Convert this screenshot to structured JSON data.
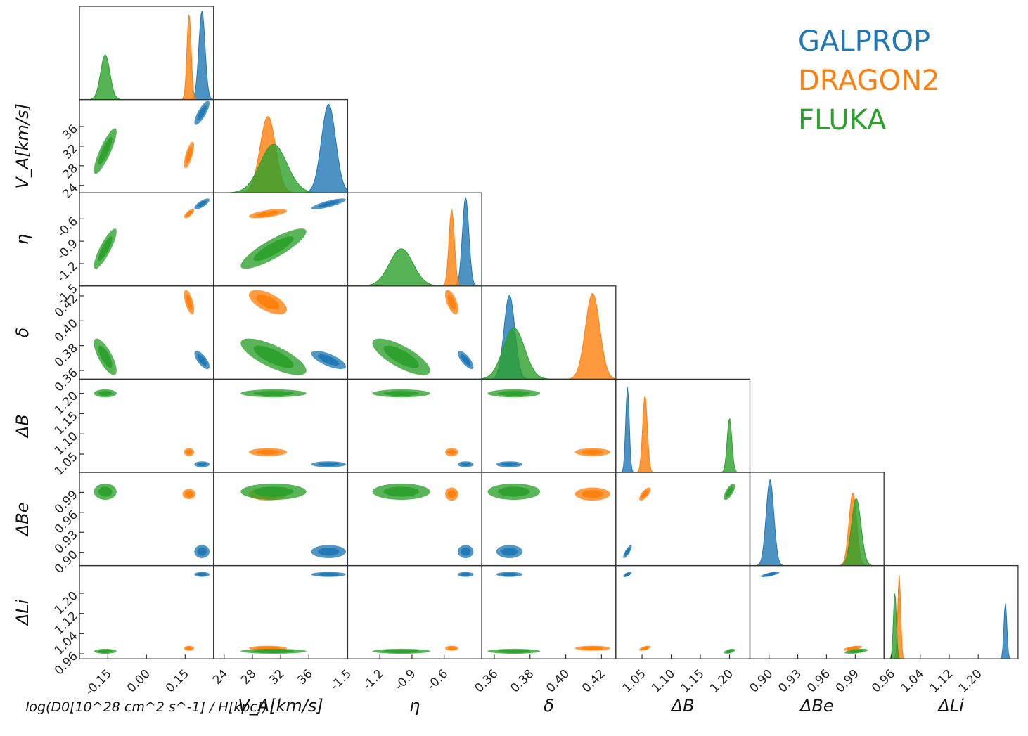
{
  "chart_data": {
    "type": "corner",
    "legend": {
      "placement": "top-right",
      "entries": [
        {
          "name": "GALPROP",
          "color": "#1f77b4"
        },
        {
          "name": "DRAGON2",
          "color": "#ff7f0e"
        },
        {
          "name": "FLUKA",
          "color": "#2ca02c"
        }
      ]
    },
    "parameters": [
      {
        "key": "logD",
        "label": "log(D0[10^28 cm^2 s^-1] / H[kpc])",
        "ticks": [
          "-0.15",
          "0.00",
          "0.15"
        ],
        "tick_values": [
          -0.15,
          0.0,
          0.15
        ],
        "range": [
          -0.26,
          0.26
        ]
      },
      {
        "key": "VA",
        "label": "V_A[km/s]",
        "ticks": [
          "24",
          "28",
          "32",
          "36"
        ],
        "tick_values": [
          24,
          28,
          32,
          36
        ],
        "range": [
          22.5,
          41.5
        ]
      },
      {
        "key": "eta",
        "label": "η",
        "ticks": [
          "-1.5",
          "-1.2",
          "-0.9",
          "-0.6"
        ],
        "tick_values": [
          -1.5,
          -1.2,
          -0.9,
          -0.6
        ],
        "range": [
          -1.5,
          -0.25
        ]
      },
      {
        "key": "delta",
        "label": "δ",
        "ticks": [
          "0.36",
          "0.38",
          "0.40",
          "0.42"
        ],
        "tick_values": [
          0.36,
          0.38,
          0.4,
          0.42
        ],
        "range": [
          0.353,
          0.428
        ]
      },
      {
        "key": "dB",
        "label": "ΔB",
        "ticks": [
          "1.05",
          "1.10",
          "1.15",
          "1.20"
        ],
        "tick_values": [
          1.05,
          1.1,
          1.15,
          1.2
        ],
        "range": [
          1.005,
          1.235
        ]
      },
      {
        "key": "dBe",
        "label": "ΔBe",
        "ticks": [
          "0.90",
          "0.93",
          "0.96",
          "0.99"
        ],
        "tick_values": [
          0.9,
          0.93,
          0.96,
          0.99
        ],
        "range": [
          0.88,
          1.02
        ]
      },
      {
        "key": "dLi",
        "label": "ΔLi",
        "ticks": [
          "0.96",
          "1.04",
          "1.12",
          "1.20"
        ],
        "tick_values": [
          0.96,
          1.04,
          1.12,
          1.2
        ],
        "range": [
          0.94,
          1.31
        ]
      }
    ],
    "series": [
      {
        "name": "GALPROP",
        "color": "#1f77b4",
        "mean": {
          "logD": 0.215,
          "VA": 38.8,
          "eta": -0.4,
          "delta": 0.3685,
          "dB": 1.025,
          "dBe": 0.901,
          "dLi": 1.275
        },
        "sd": {
          "logD": 0.012,
          "VA": 1.0,
          "eta": 0.03,
          "delta": 0.003,
          "dB": 0.003,
          "dBe": 0.004,
          "dLi": 0.004
        },
        "corr": {
          "logD|VA": 0.8,
          "logD|eta": 0.75,
          "logD|delta": -0.7,
          "VA|eta": 0.8,
          "VA|delta": -0.7,
          "eta|delta": -0.75,
          "dB|dBe": 0.8,
          "dBe|dLi": 0.8,
          "dB|dLi": 0.8
        },
        "peak": {
          "logD": 0.95,
          "VA": 0.95,
          "eta": 0.95,
          "delta": 0.9,
          "dB": 0.92,
          "dBe": 0.92,
          "dLi": 0.6
        }
      },
      {
        "name": "DRAGON2",
        "color": "#ff7f0e",
        "mean": {
          "logD": 0.165,
          "VA": 30.2,
          "eta": -0.53,
          "delta": 0.415,
          "dB": 1.055,
          "dBe": 0.9875,
          "dLi": 0.982
        },
        "sd": {
          "logD": 0.008,
          "VA": 1.1,
          "eta": 0.025,
          "delta": 0.004,
          "dB": 0.004,
          "dBe": 0.004,
          "dLi": 0.004
        },
        "corr": {
          "logD|VA": 0.7,
          "logD|eta": 0.7,
          "logD|delta": -0.6,
          "VA|eta": 0.6,
          "VA|delta": -0.6,
          "eta|delta": -0.6,
          "dB|dBe": 0.7,
          "dBe|dLi": 0.6,
          "dB|dLi": 0.6
        },
        "peak": {
          "logD": 0.92,
          "VA": 0.82,
          "eta": 0.82,
          "delta": 0.92,
          "dB": 0.82,
          "dBe": 0.78,
          "dLi": 0.9
        }
      },
      {
        "name": "FLUKA",
        "color": "#2ca02c",
        "mean": {
          "logD": -0.16,
          "VA": 31.0,
          "eta": -1.0,
          "delta": 0.371,
          "dB": 1.2,
          "dBe": 0.991,
          "dLi": 0.97
        },
        "sd": {
          "logD": 0.018,
          "VA": 1.9,
          "eta": 0.11,
          "delta": 0.006,
          "dB": 0.004,
          "dBe": 0.005,
          "dLi": 0.004
        },
        "corr": {
          "logD|VA": 0.85,
          "logD|eta": 0.85,
          "logD|delta": -0.75,
          "VA|eta": 0.85,
          "VA|delta": -0.75,
          "eta|delta": -0.75,
          "dB|dBe": 0.7,
          "dBe|dLi": 0.5,
          "dB|dLi": 0.5
        },
        "peak": {
          "logD": 0.48,
          "VA": 0.52,
          "eta": 0.4,
          "delta": 0.55,
          "dB": 0.58,
          "dBe": 0.72,
          "dLi": 0.72
        }
      }
    ]
  }
}
